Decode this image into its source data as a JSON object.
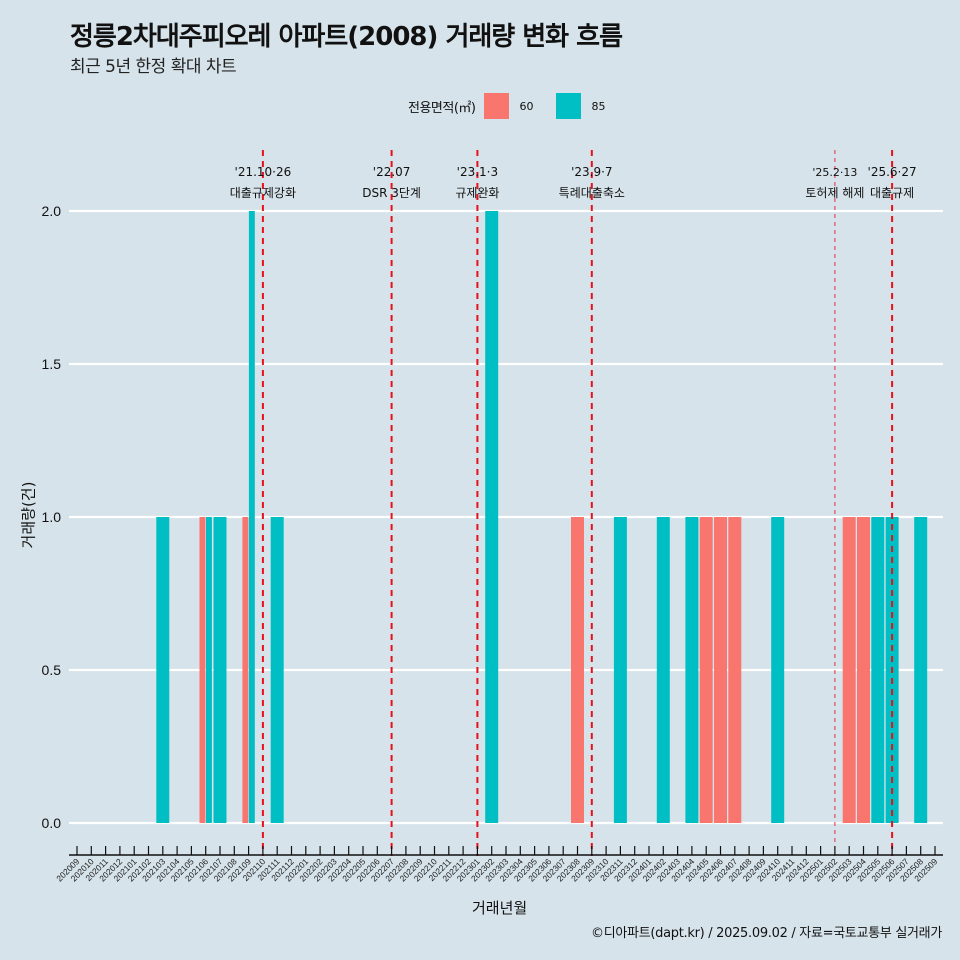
{
  "title": "정릉2차대주피오레 아파트(2008) 거래량 변화 흐름",
  "subtitle": "최근 5년 한정 확대 차트",
  "legend": {
    "title": "전용면적(㎡)",
    "items": [
      {
        "label": "60",
        "color": "#F8766D"
      },
      {
        "label": "85",
        "color": "#00BFC4"
      }
    ]
  },
  "caption": "©디아파트(dapt.kr) / 2025.09.02 / 자료=국토교통부 실거래가",
  "chart_data": {
    "type": "bar",
    "title": "정릉2차대주피오레 아파트(2008) 거래량 변화 흐름",
    "subtitle": "최근 5년 한정 확대 차트",
    "xlabel": "거래년월",
    "ylabel": "거래량(건)",
    "ylim": [
      0,
      2
    ],
    "yticks": [
      "0.0",
      "0.5",
      "1.0",
      "1.5",
      "2.0"
    ],
    "ytick_values": [
      0,
      0.5,
      1.0,
      1.5,
      2.0
    ],
    "grid": true,
    "legend_position": "top",
    "categories": [
      "202009",
      "202010",
      "202011",
      "202012",
      "202101",
      "202102",
      "202103",
      "202104",
      "202105",
      "202106",
      "202107",
      "202108",
      "202109",
      "202110",
      "202111",
      "202112",
      "202201",
      "202202",
      "202203",
      "202204",
      "202205",
      "202206",
      "202207",
      "202208",
      "202209",
      "202210",
      "202211",
      "202212",
      "202301",
      "202302",
      "202303",
      "202304",
      "202305",
      "202306",
      "202307",
      "202308",
      "202309",
      "202310",
      "202311",
      "202312",
      "202401",
      "202402",
      "202403",
      "202404",
      "202405",
      "202406",
      "202407",
      "202408",
      "202409",
      "202410",
      "202411",
      "202412",
      "202501",
      "202502",
      "202503",
      "202504",
      "202505",
      "202506",
      "202507",
      "202508",
      "202509"
    ],
    "series": [
      {
        "name": "60",
        "color": "#F8766D",
        "values": {
          "202106": 1,
          "202109": 1,
          "202308": 1,
          "202405": 1,
          "202406": 1,
          "202407": 1,
          "202503": 1,
          "202504": 1
        }
      },
      {
        "name": "85",
        "color": "#00BFC4",
        "values": {
          "202103": 1,
          "202106": 1,
          "202107": 1,
          "202109": 2,
          "202111": 1,
          "202302": 2,
          "202311": 1,
          "202402": 1,
          "202404": 1,
          "202410": 1,
          "202505": 1,
          "202506": 1,
          "202508": 1
        }
      }
    ],
    "annotations": [
      {
        "month": "202110",
        "line1": "'21.10·26",
        "line2": "대출규제강화",
        "style": "thick"
      },
      {
        "month": "202207",
        "line1": "'22.07",
        "line2": "DSR 3단계",
        "style": "thick"
      },
      {
        "month": "202301",
        "line1": "'23.1·3",
        "line2": "규제완화",
        "style": "thick"
      },
      {
        "month": "202309",
        "line1": "'23.9·7",
        "line2": "특례대출축소",
        "style": "thick"
      },
      {
        "month": "202502",
        "line1": "'25.2·13",
        "line2": "토허제 해제",
        "style": "thin"
      },
      {
        "month": "202506",
        "line1": "'25.6·27",
        "line2": "대출규제",
        "style": "thick"
      }
    ]
  }
}
